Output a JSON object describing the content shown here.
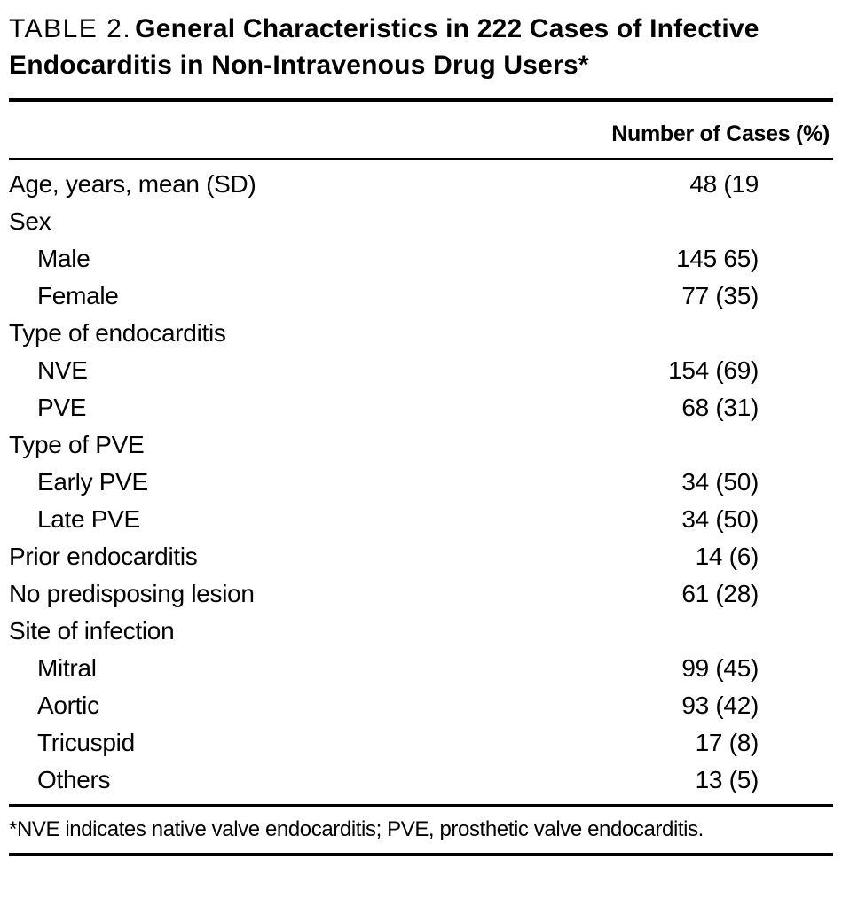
{
  "title": {
    "prefix": "TABLE 2.",
    "rest": "General Characteristics in 222 Cases of Infective Endocarditis in Non-Intravenous Drug Users*"
  },
  "table": {
    "value_column_header": "Number of Cases (%)",
    "rows": [
      {
        "label": "Age, years, mean (SD)",
        "indent": 0,
        "value": "48 (19"
      },
      {
        "label": "Sex",
        "indent": 0,
        "value": ""
      },
      {
        "label": "Male",
        "indent": 1,
        "value": "145 65)"
      },
      {
        "label": "Female",
        "indent": 1,
        "value": "77 (35)"
      },
      {
        "label": "Type of endocarditis",
        "indent": 0,
        "value": ""
      },
      {
        "label": "NVE",
        "indent": 1,
        "value": "154 (69)"
      },
      {
        "label": "PVE",
        "indent": 1,
        "value": "68 (31)"
      },
      {
        "label": "Type of PVE",
        "indent": 0,
        "value": ""
      },
      {
        "label": "Early PVE",
        "indent": 1,
        "value": "34 (50)"
      },
      {
        "label": "Late PVE",
        "indent": 1,
        "value": "34 (50)"
      },
      {
        "label": "Prior endocarditis",
        "indent": 0,
        "value": "14 (6)"
      },
      {
        "label": "No predisposing lesion",
        "indent": 0,
        "value": "61 (28)"
      },
      {
        "label": "Site of infection",
        "indent": 0,
        "value": ""
      },
      {
        "label": "Mitral",
        "indent": 1,
        "value": "99 (45)"
      },
      {
        "label": "Aortic",
        "indent": 1,
        "value": "93 (42)"
      },
      {
        "label": "Tricuspid",
        "indent": 1,
        "value": "17 (8)"
      },
      {
        "label": "Others",
        "indent": 1,
        "value": "13 (5)"
      }
    ]
  },
  "footnote": "*NVE indicates native valve endocarditis; PVE, prosthetic valve endocarditis."
}
